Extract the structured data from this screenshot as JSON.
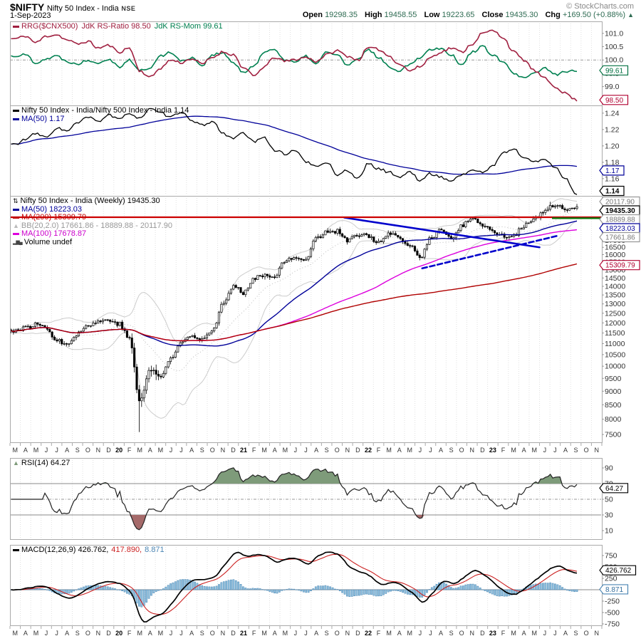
{
  "header": {
    "symbol": "$NIFTY",
    "name": "Nifty 50 Index - India",
    "exchange": "NSE",
    "date": "1-Sep-2023",
    "watermark": "© StockCharts.com",
    "change_arrow": "▲",
    "ohlc": [
      {
        "label": "Open",
        "value": "19298.35"
      },
      {
        "label": "High",
        "value": "19458.55"
      },
      {
        "label": "Low",
        "value": "19223.65"
      },
      {
        "label": "Close",
        "value": "19435.30"
      },
      {
        "label": "Chg",
        "value": "+169.50 (+0.88%)"
      }
    ]
  },
  "icons": {
    "candlestick": "⇅",
    "bb": "▲",
    "volume": "▂▆▄",
    "area": "▲"
  },
  "colors": {
    "rs_ratio": "#A02040",
    "rs_mom": "#008050",
    "ratio_line": "#000000",
    "ma50": "#000099",
    "ma100": "#DD00DD",
    "ma200": "#B00000",
    "bb": "#CCCCCC",
    "trendline": "#0000CC",
    "hline_red": "#CC0000",
    "hline_green": "#007700",
    "macd_line": "#000000",
    "macd_signal": "#CC2222",
    "macd_hist_fill": "#92C2E0",
    "macd_hist_edge": "#3F7FAF",
    "rsi_ob_fill": "#7E9B7A",
    "rsi_os_fill": "#A56A6A",
    "ohlc_value": "#2e6b52",
    "grid": "#E0E0E0",
    "panel_border": "#AAAAAA"
  },
  "panels": {
    "rrg": {
      "legend": {
        "p1": "RRG($CNX500)",
        "p2": "JdK RS-Ratio 98.50",
        "p3": "JdK RS-Mom 99.61"
      }
    },
    "ratio": {
      "legend": {
        "l1": "Nifty 50 Index - India/Nifty 500 Index - India 1.14",
        "l2": "MA(50) 1.17"
      }
    },
    "main": {
      "legend": {
        "price": "Nifty 50 Index - India (Weekly) 19435.30",
        "ma50": "MA(50) 18223.03",
        "ma200": "MA(200) 15309.79",
        "bb": "BB(20,2.0) 17661.86 - 18889.88 - 20117.90",
        "ma100": "MA(100) 17678.87",
        "volume": "Volume undef"
      }
    },
    "rsi": {
      "legend": {
        "l1": "RSI(14) 64.27"
      }
    },
    "macd": {
      "legend": {
        "p1": "MACD(12,26,9) 426.762,",
        "p2": "417.890,",
        "p3": "8.871"
      }
    }
  },
  "x_axis": {
    "labels": [
      "M",
      "A",
      "M",
      "J",
      "J",
      "A",
      "S",
      "O",
      "N",
      "D",
      "20",
      "F",
      "M",
      "A",
      "M",
      "J",
      "J",
      "A",
      "S",
      "O",
      "N",
      "D",
      "21",
      "F",
      "M",
      "A",
      "M",
      "J",
      "J",
      "A",
      "S",
      "O",
      "N",
      "D",
      "22",
      "F",
      "M",
      "A",
      "M",
      "J",
      "J",
      "A",
      "S",
      "O",
      "N",
      "D",
      "23",
      "F",
      "M",
      "A",
      "M",
      "J",
      "J",
      "A",
      "S",
      "O",
      "N"
    ]
  },
  "chart_data": [
    {
      "id": "rrg",
      "type": "line",
      "ylim": [
        98.295,
        101.45
      ],
      "yticks": [
        101.0,
        100.5,
        100.0,
        99.5,
        99.0
      ],
      "hline": 100.0,
      "series": [
        {
          "name": "JdK RS-Ratio",
          "color": "#A02040",
          "last": 98.5,
          "monthly": [
            100.8,
            100.9,
            100.65,
            100.9,
            100.95,
            100.75,
            100.6,
            100.7,
            100.45,
            100.55,
            100.3,
            100.45,
            99.6,
            99.35,
            99.7,
            100.0,
            99.9,
            100.05,
            99.85,
            100.1,
            100.3,
            100.2,
            99.7,
            99.4,
            99.75,
            100.1,
            99.95,
            100.02,
            100.1,
            99.95,
            100.2,
            100.35,
            100.15,
            100.0,
            100.45,
            100.4,
            100.15,
            99.85,
            99.6,
            99.75,
            100.1,
            100.3,
            100.45,
            100.3,
            100.6,
            101.0,
            101.1,
            100.85,
            100.3,
            100.0,
            99.6,
            99.3,
            99.0,
            98.75,
            98.5
          ]
        },
        {
          "name": "JdK RS-Mom",
          "color": "#008050",
          "last": 99.61,
          "monthly": [
            100.15,
            100.2,
            99.9,
            100.05,
            100.15,
            99.95,
            99.85,
            100.0,
            99.9,
            100.05,
            99.75,
            100.0,
            99.6,
            99.7,
            100.15,
            100.3,
            99.95,
            100.1,
            99.8,
            100.2,
            100.25,
            99.9,
            99.5,
            99.8,
            100.3,
            100.4,
            100.0,
            99.9,
            100.15,
            99.85,
            100.3,
            100.2,
            99.8,
            100.0,
            100.4,
            100.1,
            99.75,
            99.6,
            99.85,
            100.1,
            100.4,
            100.45,
            100.2,
            99.8,
            100.3,
            100.5,
            100.2,
            99.9,
            99.5,
            99.3,
            99.5,
            99.7,
            99.45,
            99.55,
            99.61
          ]
        }
      ],
      "pills": [
        {
          "label": "99.61",
          "value": 99.61,
          "style": "green"
        },
        {
          "label": "98.50",
          "value": 98.5,
          "style": "crimson"
        }
      ]
    },
    {
      "id": "ratio",
      "type": "line",
      "ylim": [
        1.139,
        1.2495
      ],
      "yticks": [
        1.24,
        1.22,
        1.2,
        1.18,
        1.16
      ],
      "series": [
        {
          "name": "Nifty 50 Index - India/Nifty 500 Index - India",
          "color": "#000000",
          "last": 1.14,
          "monthly": [
            1.202,
            1.208,
            1.215,
            1.21,
            1.222,
            1.218,
            1.228,
            1.235,
            1.23,
            1.238,
            1.232,
            1.24,
            1.234,
            1.245,
            1.24,
            1.235,
            1.242,
            1.23,
            1.225,
            1.23,
            1.215,
            1.21,
            1.215,
            1.205,
            1.21,
            1.195,
            1.19,
            1.195,
            1.18,
            1.175,
            1.18,
            1.165,
            1.17,
            1.16,
            1.178,
            1.172,
            1.168,
            1.162,
            1.168,
            1.158,
            1.166,
            1.162,
            1.157,
            1.165,
            1.17,
            1.168,
            1.175,
            1.192,
            1.196,
            1.186,
            1.18,
            1.184,
            1.174,
            1.16,
            1.142
          ]
        },
        {
          "name": "MA(50)",
          "color": "#000099",
          "last": 1.17,
          "derived": "sma50_of_ratio"
        }
      ],
      "pills": [
        {
          "label": "1.17",
          "value": 1.17,
          "style": "navy"
        },
        {
          "label": "1.14",
          "value": 1.14,
          "style": "black-bold"
        }
      ]
    },
    {
      "id": "price",
      "type": "candlestick",
      "scale": "log",
      "title": "Nifty 50 Index - India (Weekly)",
      "last_close": 19435.3,
      "yticks": [
        17000,
        16500,
        16000,
        15500,
        15000,
        14500,
        14000,
        13500,
        13000,
        12500,
        12000,
        11500,
        11000,
        10500,
        10000,
        9500,
        9000,
        8500,
        8000,
        7500
      ],
      "monthly_closes": [
        11624,
        11748,
        11923,
        11789,
        11118,
        11023,
        11474,
        11877,
        12056,
        12168,
        11962,
        11202,
        8598,
        9860,
        9580,
        10302,
        11073,
        11388,
        11248,
        11643,
        12969,
        13982,
        13635,
        14529,
        14691,
        14631,
        15583,
        15722,
        15763,
        17132,
        17618,
        17672,
        16983,
        17354,
        17340,
        16794,
        17465,
        17103,
        16585,
        15780,
        17158,
        17759,
        17094,
        18012,
        18758,
        18105,
        17662,
        17304,
        17360,
        18065,
        18534,
        19189,
        19754,
        19254,
        19435
      ],
      "overlays": [
        {
          "name": "MA(50)",
          "window": 50,
          "value": 18223.03,
          "color": "#000099"
        },
        {
          "name": "MA(100)",
          "window": 100,
          "value": 17678.87,
          "color": "#DD00DD"
        },
        {
          "name": "MA(200)",
          "window": 200,
          "value": 15309.79,
          "color": "#B00000"
        },
        {
          "name": "BB(20,2.0)",
          "lower": 17661.86,
          "mid": 18889.88,
          "upper": 20117.9,
          "color": "#CCCCCC"
        }
      ],
      "annotations": {
        "trendlines": [
          {
            "style": "solid",
            "x1_month": 32.2,
            "v1": 18700,
            "x2_month": 51.0,
            "v2": 16500
          },
          {
            "style": "dashed",
            "x1_month": 39.7,
            "v1": 15100,
            "x2_month": 52.9,
            "v2": 17350
          }
        ],
        "hlines": [
          {
            "color": "#CC0000",
            "value": 18730,
            "from_month": 0,
            "to_month": 57
          },
          {
            "color": "#007700",
            "value": 18650,
            "from_month": 52.2,
            "to_month": 57
          }
        ]
      },
      "pills": [
        {
          "label": "20117.90",
          "value": 20117.9,
          "style": "gray"
        },
        {
          "label": "19435.30",
          "value": 19435.3,
          "style": "black-bold"
        },
        {
          "label": "18889.88",
          "value": 18889.88,
          "style": "gray"
        },
        {
          "label": "18223.03",
          "value": 18223.03,
          "style": "navy"
        },
        {
          "label": "17661.86",
          "value": 17661.86,
          "style": "gray"
        },
        {
          "label": "15309.79",
          "value": 15309.79,
          "style": "crimson"
        }
      ]
    },
    {
      "id": "rsi",
      "type": "line",
      "params": "RSI(14)",
      "derived": "rsi14_of_price",
      "last": 64.27,
      "yticks": [
        90,
        70,
        50,
        30,
        10
      ],
      "overbought": 70,
      "oversold": 30,
      "midline": 50,
      "pills": [
        {
          "label": "64.27",
          "value": 64.27,
          "style": "black"
        }
      ]
    },
    {
      "id": "macd",
      "type": "macd",
      "params": "MACD(12,26,9)",
      "derived": "macd_12_26_9_of_price",
      "last_macd": 426.762,
      "last_signal": 417.89,
      "last_hist": 8.871,
      "yticks": [
        750,
        500,
        250,
        -250,
        -500,
        -750
      ],
      "pills": [
        {
          "label": "426.762",
          "value": 426.762,
          "style": "black"
        },
        {
          "label": "8.871",
          "value": 8.871,
          "style": "steel"
        }
      ]
    }
  ]
}
